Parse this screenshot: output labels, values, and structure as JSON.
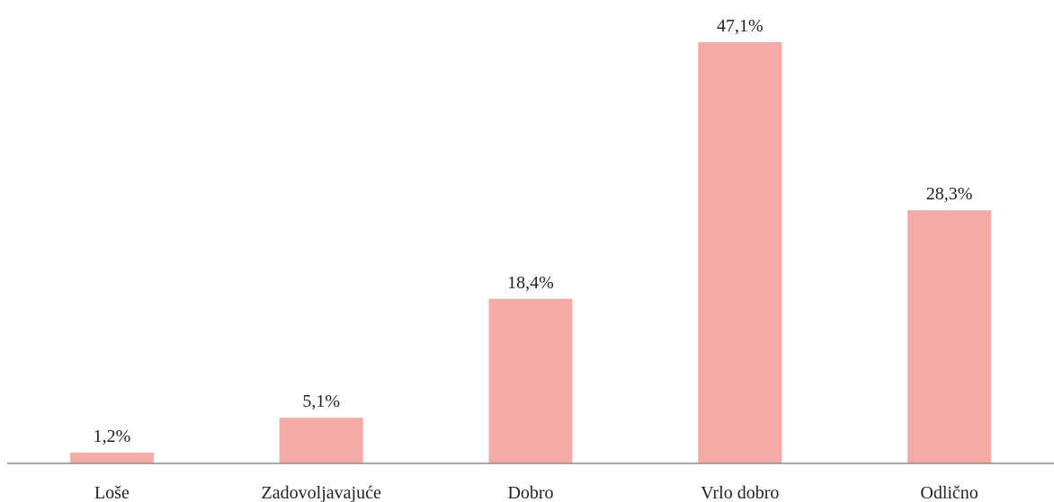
{
  "chart_data": {
    "type": "bar",
    "categories": [
      "Loše",
      "Zadovoljavajuće",
      "Dobro",
      "Vrlo dobro",
      "Odlično"
    ],
    "values": [
      1.2,
      5.1,
      18.4,
      47.1,
      28.3
    ],
    "value_labels": [
      "1,2%",
      "5,1%",
      "18,4%",
      "47,1%",
      "28,3%"
    ],
    "color": "#f5aaa6"
  }
}
